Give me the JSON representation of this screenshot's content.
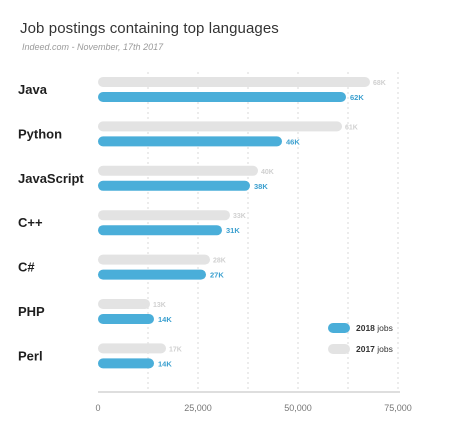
{
  "chart_data": {
    "type": "bar",
    "orientation": "horizontal",
    "title": "Job postings containing top languages",
    "subtitle": "Indeed.com - November, 17th 2017",
    "categories": [
      "Java",
      "Python",
      "JavaScript",
      "C++",
      "C#",
      "PHP",
      "Perl"
    ],
    "series": [
      {
        "name": "2017",
        "color": "#e3e3e3",
        "values": [
          68000,
          61000,
          40000,
          33000,
          28000,
          13000,
          17000
        ],
        "labels": [
          "68K",
          "61K",
          "40K",
          "33K",
          "28K",
          "13K",
          "17K"
        ]
      },
      {
        "name": "2018",
        "color": "#4aaed9",
        "values": [
          62000,
          46000,
          38000,
          31000,
          27000,
          14000,
          14000
        ],
        "labels": [
          "62K",
          "46K",
          "38K",
          "31K",
          "27K",
          "14K",
          "14K"
        ]
      }
    ],
    "legend": {
      "position": "bottom-right",
      "suffix": "jobs",
      "items": [
        "2018",
        "2017"
      ]
    },
    "xticks": [
      "0",
      "25,000",
      "50,000",
      "75,000"
    ],
    "xlim": [
      0,
      75000
    ],
    "grid": "vertical"
  }
}
